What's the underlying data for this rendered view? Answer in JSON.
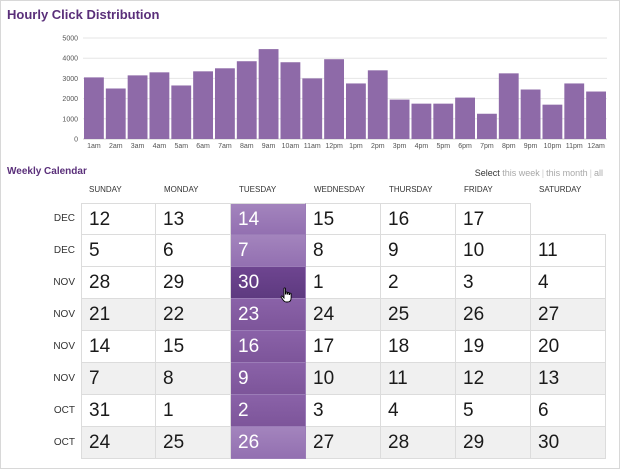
{
  "titles": {
    "chart_title": "Hourly Click Distribution",
    "calendar_title": "Weekly Calendar"
  },
  "select": {
    "label": "Select",
    "options": [
      "this week",
      "this month",
      "all"
    ]
  },
  "chart_data": {
    "type": "bar",
    "title": "Hourly Click Distribution",
    "xlabel": "",
    "ylabel": "",
    "ylim": [
      0,
      5000
    ],
    "yticks": [
      "0",
      "1000",
      "2000",
      "3000",
      "4000",
      "5000"
    ],
    "grid": true,
    "categories": [
      "1am",
      "2am",
      "3am",
      "4am",
      "5am",
      "6am",
      "7am",
      "8am",
      "9am",
      "10am",
      "11am",
      "12pm",
      "1pm",
      "2pm",
      "3pm",
      "4pm",
      "5pm",
      "6pm",
      "7pm",
      "8pm",
      "9pm",
      "10pm",
      "11pm",
      "12am"
    ],
    "values": [
      3050,
      2500,
      3150,
      3300,
      2650,
      3350,
      3500,
      3850,
      4450,
      3800,
      3000,
      3950,
      2750,
      3400,
      1950,
      1750,
      1750,
      2050,
      1250,
      3250,
      2450,
      1700,
      2750,
      2350
    ],
    "bar_color": "#8e6aa8"
  },
  "calendar": {
    "day_headers": [
      "SUNDAY",
      "MONDAY",
      "TUESDAY",
      "WEDNESDAY",
      "THURSDAY",
      "FRIDAY",
      "SATURDAY"
    ],
    "highlight_column": 2,
    "highlight_color": "#7d559a",
    "weeks": [
      {
        "month": "DEC",
        "days": [
          "12",
          "13",
          "14",
          "15",
          "16",
          "17",
          ""
        ]
      },
      {
        "month": "DEC",
        "days": [
          "5",
          "6",
          "7",
          "8",
          "9",
          "10",
          "11"
        ]
      },
      {
        "month": "NOV",
        "days": [
          "28",
          "29",
          "30",
          "1",
          "2",
          "3",
          "4"
        ]
      },
      {
        "month": "NOV",
        "days": [
          "21",
          "22",
          "23",
          "24",
          "25",
          "26",
          "27"
        ]
      },
      {
        "month": "NOV",
        "days": [
          "14",
          "15",
          "16",
          "17",
          "18",
          "19",
          "20"
        ]
      },
      {
        "month": "NOV",
        "days": [
          "7",
          "8",
          "9",
          "10",
          "11",
          "12",
          "13"
        ]
      },
      {
        "month": "OCT",
        "days": [
          "31",
          "1",
          "2",
          "3",
          "4",
          "5",
          "6"
        ]
      },
      {
        "month": "OCT",
        "days": [
          "24",
          "25",
          "26",
          "27",
          "28",
          "29",
          "30"
        ]
      }
    ],
    "row_shading": [
      "white",
      "white",
      "white",
      "alt",
      "white",
      "alt",
      "white",
      "alt"
    ]
  }
}
